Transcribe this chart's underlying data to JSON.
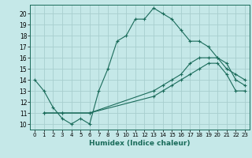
{
  "xlabel": "Humidex (Indice chaleur)",
  "bg_color": "#c5e8e8",
  "line_color": "#1a6b5a",
  "grid_color": "#a8cece",
  "xlim": [
    -0.5,
    23.5
  ],
  "ylim": [
    9.5,
    20.8
  ],
  "xticks": [
    0,
    1,
    2,
    3,
    4,
    5,
    6,
    7,
    8,
    9,
    10,
    11,
    12,
    13,
    14,
    15,
    16,
    17,
    18,
    19,
    20,
    21,
    22,
    23
  ],
  "yticks": [
    10,
    11,
    12,
    13,
    14,
    15,
    16,
    17,
    18,
    19,
    20
  ],
  "line1_x": [
    0,
    1,
    2,
    3,
    4,
    5,
    6,
    7,
    8,
    9,
    10,
    11,
    12,
    13,
    14,
    15,
    16,
    17,
    18,
    19,
    20,
    21,
    22,
    23
  ],
  "line1_y": [
    14,
    13,
    11.5,
    10.5,
    10,
    10.5,
    10,
    13,
    15,
    17.5,
    18,
    19.5,
    19.5,
    20.5,
    20,
    19.5,
    18.5,
    17.5,
    17.5,
    17,
    16,
    15,
    14.5,
    14
  ],
  "line2_x": [
    1,
    3,
    6,
    13,
    14,
    15,
    16,
    17,
    18,
    19,
    20,
    21,
    22,
    23
  ],
  "line2_y": [
    11,
    11,
    11,
    13,
    13.5,
    14,
    14.5,
    15.5,
    16,
    16,
    16,
    15.5,
    14,
    13.5
  ],
  "line3_x": [
    1,
    3,
    6,
    13,
    14,
    15,
    16,
    17,
    18,
    19,
    20,
    21,
    22,
    23
  ],
  "line3_y": [
    11,
    11,
    11,
    12.5,
    13,
    13.5,
    14,
    14.5,
    15,
    15.5,
    15.5,
    14.5,
    13,
    13
  ]
}
